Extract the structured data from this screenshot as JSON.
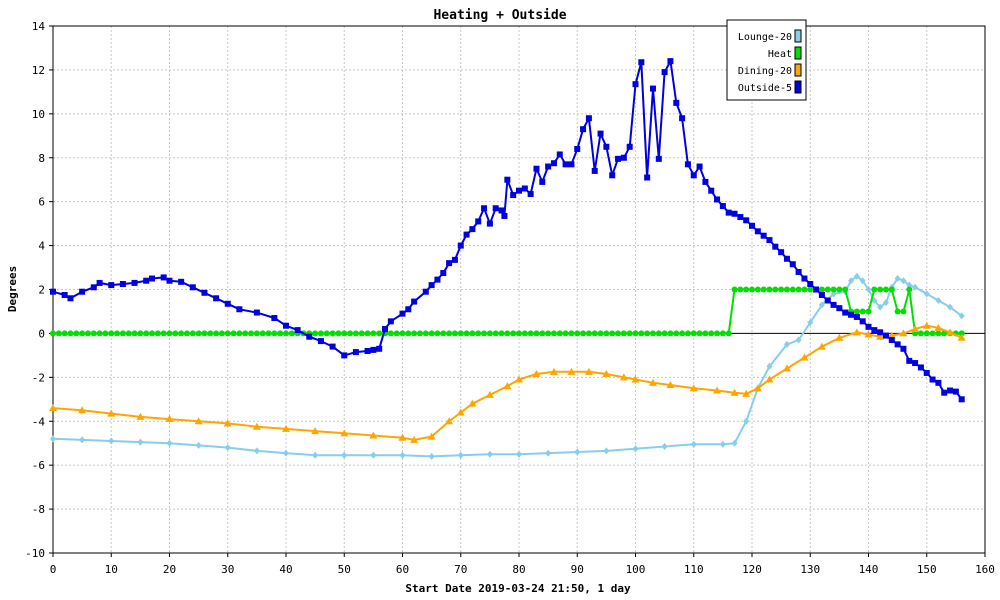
{
  "chart_data": {
    "type": "line",
    "title": "Heating + Outside",
    "xlabel": "Start Date 2019-03-24 21:50, 1 day",
    "ylabel": "Degrees",
    "xlim": [
      0,
      160
    ],
    "ylim": [
      -10,
      14
    ],
    "xticks": [
      "0",
      "10",
      "20",
      "30",
      "40",
      "50",
      "60",
      "70",
      "80",
      "90",
      "100",
      "110",
      "120",
      "130",
      "140",
      "150",
      "160"
    ],
    "yticks": [
      "14",
      "12",
      "10",
      "8",
      "6",
      "4",
      "2",
      "0",
      "-2",
      "-4",
      "-6",
      "-8",
      "-10"
    ],
    "grid": true,
    "legend_position": "top-right",
    "series": [
      {
        "name": "Lounge-20",
        "color": "#87ceeb",
        "marker": "diamond",
        "points": [
          [
            0,
            -4.8
          ],
          [
            5,
            -4.85
          ],
          [
            10,
            -4.9
          ],
          [
            15,
            -4.95
          ],
          [
            20,
            -5.0
          ],
          [
            25,
            -5.1
          ],
          [
            30,
            -5.2
          ],
          [
            35,
            -5.35
          ],
          [
            40,
            -5.45
          ],
          [
            45,
            -5.55
          ],
          [
            50,
            -5.55
          ],
          [
            55,
            -5.55
          ],
          [
            60,
            -5.55
          ],
          [
            65,
            -5.6
          ],
          [
            70,
            -5.55
          ],
          [
            75,
            -5.5
          ],
          [
            80,
            -5.5
          ],
          [
            85,
            -5.45
          ],
          [
            90,
            -5.4
          ],
          [
            95,
            -5.35
          ],
          [
            100,
            -5.25
          ],
          [
            105,
            -5.15
          ],
          [
            110,
            -5.05
          ],
          [
            115,
            -5.05
          ],
          [
            117,
            -5.0
          ],
          [
            119,
            -4.0
          ],
          [
            121,
            -2.5
          ],
          [
            123,
            -1.5
          ],
          [
            126,
            -0.5
          ],
          [
            128,
            -0.3
          ],
          [
            130,
            0.5
          ],
          [
            132,
            1.3
          ],
          [
            134,
            1.8
          ],
          [
            136,
            1.9
          ],
          [
            137,
            2.4
          ],
          [
            138,
            2.6
          ],
          [
            139,
            2.4
          ],
          [
            140,
            2.0
          ],
          [
            141,
            1.5
          ],
          [
            142,
            1.2
          ],
          [
            143,
            1.4
          ],
          [
            144,
            2.1
          ],
          [
            145,
            2.5
          ],
          [
            146,
            2.4
          ],
          [
            147,
            2.2
          ],
          [
            148,
            2.1
          ],
          [
            150,
            1.8
          ],
          [
            152,
            1.5
          ],
          [
            154,
            1.2
          ],
          [
            156,
            0.8
          ]
        ]
      },
      {
        "name": "Heat",
        "color": "#00e000",
        "marker": "circle",
        "points": [
          [
            0,
            0
          ],
          [
            116,
            0
          ],
          [
            117,
            2
          ],
          [
            136,
            2
          ],
          [
            137,
            1
          ],
          [
            140,
            1
          ],
          [
            141,
            2
          ],
          [
            144,
            2
          ],
          [
            145,
            1
          ],
          [
            146,
            1
          ],
          [
            147,
            2
          ],
          [
            148,
            0
          ],
          [
            156,
            0
          ]
        ]
      },
      {
        "name": "Dining-20",
        "color": "#ffa500",
        "marker": "triangle",
        "points": [
          [
            0,
            -3.4
          ],
          [
            5,
            -3.5
          ],
          [
            10,
            -3.65
          ],
          [
            15,
            -3.8
          ],
          [
            20,
            -3.9
          ],
          [
            25,
            -4.0
          ],
          [
            30,
            -4.1
          ],
          [
            35,
            -4.25
          ],
          [
            40,
            -4.35
          ],
          [
            45,
            -4.45
          ],
          [
            50,
            -4.55
          ],
          [
            55,
            -4.65
          ],
          [
            60,
            -4.75
          ],
          [
            62,
            -4.85
          ],
          [
            65,
            -4.7
          ],
          [
            68,
            -4.0
          ],
          [
            70,
            -3.6
          ],
          [
            72,
            -3.2
          ],
          [
            75,
            -2.8
          ],
          [
            78,
            -2.4
          ],
          [
            80,
            -2.1
          ],
          [
            83,
            -1.85
          ],
          [
            86,
            -1.75
          ],
          [
            89,
            -1.75
          ],
          [
            92,
            -1.75
          ],
          [
            95,
            -1.85
          ],
          [
            98,
            -2.0
          ],
          [
            100,
            -2.1
          ],
          [
            103,
            -2.25
          ],
          [
            106,
            -2.35
          ],
          [
            110,
            -2.5
          ],
          [
            114,
            -2.6
          ],
          [
            117,
            -2.7
          ],
          [
            119,
            -2.75
          ],
          [
            121,
            -2.5
          ],
          [
            123,
            -2.1
          ],
          [
            126,
            -1.6
          ],
          [
            129,
            -1.1
          ],
          [
            132,
            -0.6
          ],
          [
            135,
            -0.2
          ],
          [
            138,
            0.05
          ],
          [
            140,
            -0.05
          ],
          [
            142,
            -0.15
          ],
          [
            144,
            -0.1
          ],
          [
            146,
            0.0
          ],
          [
            148,
            0.2
          ],
          [
            150,
            0.35
          ],
          [
            152,
            0.25
          ],
          [
            154,
            0.05
          ],
          [
            156,
            -0.2
          ]
        ]
      },
      {
        "name": "Outside-5",
        "color": "#0000e0",
        "marker": "square",
        "points": [
          [
            0,
            1.9
          ],
          [
            2,
            1.75
          ],
          [
            3,
            1.6
          ],
          [
            5,
            1.9
          ],
          [
            7,
            2.1
          ],
          [
            8,
            2.3
          ],
          [
            10,
            2.2
          ],
          [
            12,
            2.25
          ],
          [
            14,
            2.3
          ],
          [
            16,
            2.4
          ],
          [
            17,
            2.5
          ],
          [
            19,
            2.55
          ],
          [
            20,
            2.4
          ],
          [
            22,
            2.35
          ],
          [
            24,
            2.1
          ],
          [
            26,
            1.85
          ],
          [
            28,
            1.6
          ],
          [
            30,
            1.35
          ],
          [
            32,
            1.1
          ],
          [
            35,
            0.95
          ],
          [
            38,
            0.7
          ],
          [
            40,
            0.35
          ],
          [
            42,
            0.15
          ],
          [
            44,
            -0.15
          ],
          [
            46,
            -0.35
          ],
          [
            48,
            -0.6
          ],
          [
            50,
            -1.0
          ],
          [
            52,
            -0.85
          ],
          [
            54,
            -0.8
          ],
          [
            55,
            -0.75
          ],
          [
            56,
            -0.7
          ],
          [
            57,
            0.2
          ],
          [
            58,
            0.55
          ],
          [
            60,
            0.9
          ],
          [
            61,
            1.1
          ],
          [
            62,
            1.45
          ],
          [
            64,
            1.9
          ],
          [
            65,
            2.2
          ],
          [
            66,
            2.45
          ],
          [
            67,
            2.75
          ],
          [
            68,
            3.2
          ],
          [
            69,
            3.35
          ],
          [
            70,
            4.0
          ],
          [
            71,
            4.5
          ],
          [
            72,
            4.75
          ],
          [
            73,
            5.1
          ],
          [
            74,
            5.7
          ],
          [
            75,
            5.0
          ],
          [
            76,
            5.7
          ],
          [
            77,
            5.6
          ],
          [
            77.5,
            5.35
          ],
          [
            78,
            7.0
          ],
          [
            79,
            6.3
          ],
          [
            80,
            6.5
          ],
          [
            81,
            6.6
          ],
          [
            82,
            6.35
          ],
          [
            83,
            7.5
          ],
          [
            84,
            6.9
          ],
          [
            85,
            7.6
          ],
          [
            86,
            7.75
          ],
          [
            87,
            8.15
          ],
          [
            88,
            7.7
          ],
          [
            89,
            7.7
          ],
          [
            90,
            8.4
          ],
          [
            91,
            9.3
          ],
          [
            92,
            9.8
          ],
          [
            93,
            7.4
          ],
          [
            94,
            9.1
          ],
          [
            95,
            8.5
          ],
          [
            96,
            7.2
          ],
          [
            97,
            7.95
          ],
          [
            98,
            8.0
          ],
          [
            99,
            8.5
          ],
          [
            100,
            11.35
          ],
          [
            101,
            12.35
          ],
          [
            102,
            7.1
          ],
          [
            103,
            11.15
          ],
          [
            104,
            7.95
          ],
          [
            105,
            11.9
          ],
          [
            106,
            12.4
          ],
          [
            107,
            10.5
          ],
          [
            108,
            9.8
          ],
          [
            109,
            7.7
          ],
          [
            110,
            7.2
          ],
          [
            111,
            7.6
          ],
          [
            112,
            6.9
          ],
          [
            113,
            6.5
          ],
          [
            114,
            6.1
          ],
          [
            115,
            5.8
          ],
          [
            116,
            5.5
          ],
          [
            117,
            5.45
          ],
          [
            118,
            5.3
          ],
          [
            119,
            5.15
          ],
          [
            120,
            4.9
          ],
          [
            121,
            4.65
          ],
          [
            122,
            4.45
          ],
          [
            123,
            4.25
          ],
          [
            124,
            3.95
          ],
          [
            125,
            3.7
          ],
          [
            126,
            3.4
          ],
          [
            127,
            3.15
          ],
          [
            128,
            2.8
          ],
          [
            129,
            2.5
          ],
          [
            130,
            2.25
          ],
          [
            131,
            2.0
          ],
          [
            132,
            1.75
          ],
          [
            133,
            1.5
          ],
          [
            134,
            1.3
          ],
          [
            135,
            1.15
          ],
          [
            136,
            0.95
          ],
          [
            137,
            0.85
          ],
          [
            138,
            0.75
          ],
          [
            139,
            0.55
          ],
          [
            140,
            0.3
          ],
          [
            141,
            0.15
          ],
          [
            142,
            0.05
          ],
          [
            143,
            -0.1
          ],
          [
            144,
            -0.3
          ],
          [
            145,
            -0.5
          ],
          [
            146,
            -0.7
          ],
          [
            147,
            -1.25
          ],
          [
            148,
            -1.35
          ],
          [
            149,
            -1.55
          ],
          [
            150,
            -1.8
          ],
          [
            151,
            -2.1
          ],
          [
            152,
            -2.25
          ],
          [
            153,
            -2.7
          ],
          [
            154,
            -2.6
          ],
          [
            155,
            -2.65
          ],
          [
            156,
            -3.0
          ]
        ]
      }
    ]
  }
}
